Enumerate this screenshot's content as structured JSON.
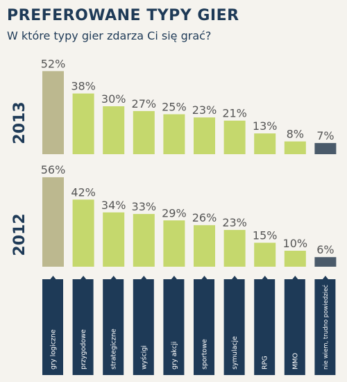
{
  "header": {
    "title": "PREFEROWANE TYPY GIER",
    "subtitle": "W które typy gier zdarza Ci się grać?"
  },
  "colors": {
    "background": "#f5f3ee",
    "title": "#1e3a57",
    "bar_first": "#bcb88f",
    "bar_middle": "#c5d86d",
    "bar_last": "#4a5a6a",
    "label_box": "#1e3a57",
    "value_text": "#555555"
  },
  "chart_data": {
    "type": "bar",
    "categories": [
      "gry logiczne",
      "przygodowe",
      "strategiczne",
      "wyścigi",
      "gry akcji",
      "sportowe",
      "symulacje",
      "RPG",
      "MMO",
      "nie wiem, trudno powiedzieć"
    ],
    "series": [
      {
        "name": "2013",
        "values": [
          52,
          38,
          30,
          27,
          25,
          23,
          21,
          13,
          8,
          7
        ]
      },
      {
        "name": "2012",
        "values": [
          56,
          42,
          34,
          33,
          29,
          26,
          23,
          15,
          10,
          6
        ]
      }
    ],
    "value_suffix": "%",
    "ylim": [
      0,
      100
    ],
    "grid": false,
    "legend": "none"
  }
}
